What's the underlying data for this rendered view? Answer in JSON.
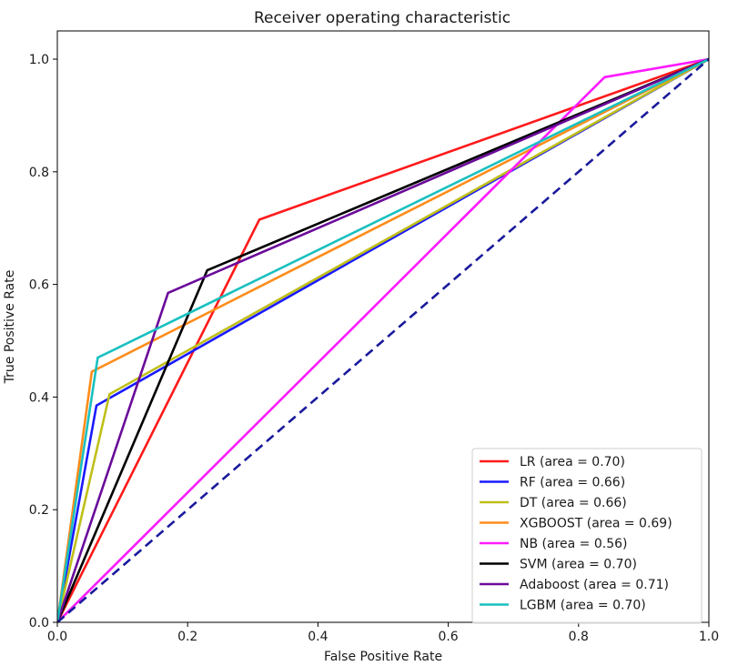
{
  "chart_data": {
    "type": "line",
    "title": "Receiver operating characteristic",
    "xlabel": "False Positive Rate",
    "ylabel": "True Positive Rate",
    "xlim": [
      0.0,
      1.0
    ],
    "ylim": [
      0.0,
      1.0
    ],
    "xticks": [
      "0.0",
      "0.2",
      "0.4",
      "0.6",
      "0.8",
      "1.0"
    ],
    "yticks": [
      "0.0",
      "0.2",
      "0.4",
      "0.6",
      "0.8",
      "1.0"
    ],
    "grid": false,
    "legend_position": "lower-right",
    "series": [
      {
        "name": "LR (area = 0.70)",
        "color": "#ff1a1a",
        "x": [
          0.0,
          0.31,
          1.0
        ],
        "y": [
          0.0,
          0.715,
          1.0
        ]
      },
      {
        "name": "RF (area = 0.66)",
        "color": "#1a1aff",
        "x": [
          0.0,
          0.06,
          1.0
        ],
        "y": [
          0.0,
          0.385,
          1.0
        ]
      },
      {
        "name": "DT (area = 0.66)",
        "color": "#bfbf1a",
        "x": [
          0.0,
          0.08,
          1.0
        ],
        "y": [
          0.0,
          0.405,
          1.0
        ]
      },
      {
        "name": "XGBOOST (area = 0.69)",
        "color": "#ff8c1a",
        "x": [
          0.0,
          0.053,
          1.0
        ],
        "y": [
          0.0,
          0.445,
          1.0
        ]
      },
      {
        "name": "NB (area = 0.56)",
        "color": "#ff1aff",
        "x": [
          0.0,
          0.84,
          1.0
        ],
        "y": [
          0.0,
          0.968,
          1.0
        ]
      },
      {
        "name": "SVM (area = 0.70)",
        "color": "#000000",
        "x": [
          0.0,
          0.23,
          1.0
        ],
        "y": [
          0.0,
          0.625,
          1.0
        ]
      },
      {
        "name": "Adaboost (area = 0.71)",
        "color": "#6a0a9a",
        "x": [
          0.0,
          0.17,
          1.0
        ],
        "y": [
          0.0,
          0.585,
          1.0
        ]
      },
      {
        "name": "LGBM (area = 0.70)",
        "color": "#1ac0c0",
        "x": [
          0.0,
          0.062,
          1.0
        ],
        "y": [
          0.0,
          0.47,
          1.0
        ]
      }
    ],
    "reference_line": {
      "color": "#1a1a9c",
      "style": "dashed",
      "x": [
        0.0,
        1.0
      ],
      "y": [
        0.0,
        1.0
      ]
    }
  }
}
